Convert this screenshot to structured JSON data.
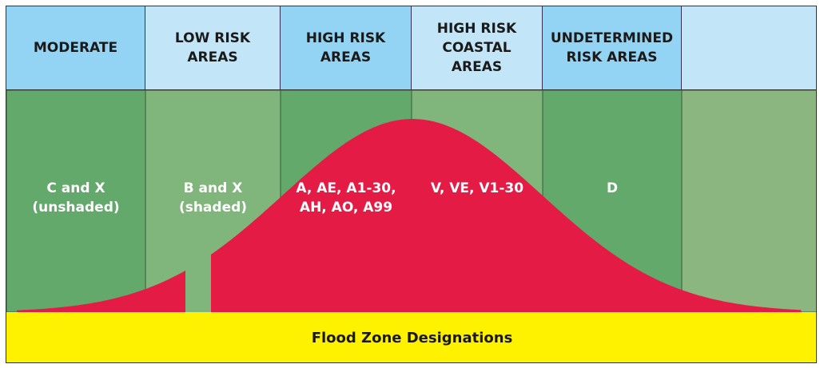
{
  "columns": [
    {
      "header": "MODERATE",
      "zones": "C and X\n(unshaded)"
    },
    {
      "header": "LOW RISK\nAREAS",
      "zones": "B and X\n(shaded)"
    },
    {
      "header": "HIGH RISK\nAREAS",
      "zones": "A, AE, A1-30,\nAH, AO, A99"
    },
    {
      "header": "HIGH RISK\nCOASTAL\nAREAS",
      "zones": "V, VE, V1-30"
    },
    {
      "header": "UNDETERMINED\nRISK AREAS",
      "zones": "D"
    },
    {
      "header": "",
      "zones": ""
    }
  ],
  "footer": "Flood Zone Designations",
  "colors": {
    "header_dark": "#93d4f4",
    "header_light": "#c2e6f8",
    "green_dark": "#62a96b",
    "green_light": "#80b57b",
    "green_last": "#8cb67f",
    "curve": "#e31b45",
    "footer": "#fff200"
  }
}
